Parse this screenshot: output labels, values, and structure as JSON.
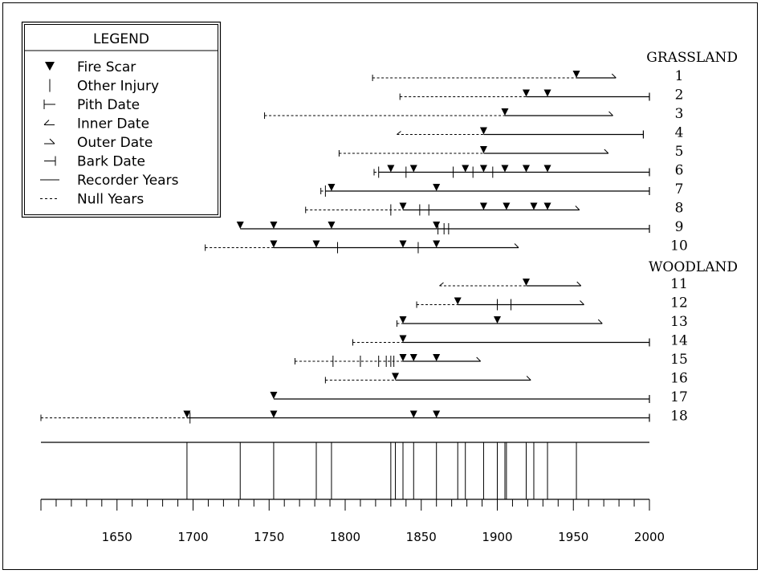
{
  "chart_data": {
    "type": "fire-history",
    "xlim": [
      1600,
      2000
    ],
    "major_ticks": [
      1650,
      1700,
      1750,
      1800,
      1850,
      1900,
      1950,
      2000
    ],
    "legend": {
      "title": "LEGEND",
      "items": [
        {
          "key": "fire_scar",
          "label": "Fire Scar"
        },
        {
          "key": "other_injury",
          "label": "Other Injury"
        },
        {
          "key": "pith_date",
          "label": "Pith Date"
        },
        {
          "key": "inner_date",
          "label": "Inner Date"
        },
        {
          "key": "outer_date",
          "label": "Outer Date"
        },
        {
          "key": "bark_date",
          "label": "Bark Date"
        },
        {
          "key": "recorder",
          "label": "Recorder Years"
        },
        {
          "key": "null",
          "label": "Null Years"
        }
      ]
    },
    "groups": [
      {
        "name": "GRASSLAND",
        "after_row": 0
      },
      {
        "name": "WOODLAND",
        "after_row": 10
      }
    ],
    "trees": [
      {
        "id": "1",
        "start": 1818,
        "end": 1978,
        "start_type": "pith",
        "end_type": "outer",
        "recorder_from": 1952,
        "scars": [
          1952
        ],
        "injuries": []
      },
      {
        "id": "2",
        "start": 1836,
        "end": 2000,
        "start_type": "pith",
        "end_type": "bark",
        "recorder_from": 1919,
        "scars": [
          1919,
          1933
        ],
        "injuries": []
      },
      {
        "id": "3",
        "start": 1747,
        "end": 1976,
        "start_type": "pith",
        "end_type": "outer",
        "recorder_from": 1905,
        "scars": [
          1905
        ],
        "injuries": []
      },
      {
        "id": "4",
        "start": 1834,
        "end": 1996,
        "start_type": "inner",
        "end_type": "bark",
        "recorder_from": 1891,
        "scars": [
          1891
        ],
        "injuries": []
      },
      {
        "id": "5",
        "start": 1796,
        "end": 1973,
        "start_type": "pith",
        "end_type": "outer",
        "recorder_from": 1891,
        "scars": [
          1891
        ],
        "injuries": []
      },
      {
        "id": "6",
        "start": 1819,
        "end": 2000,
        "start_type": "pith",
        "end_type": "bark",
        "recorder_from": 1822,
        "scars": [
          1830,
          1845,
          1879,
          1891,
          1905,
          1919,
          1933
        ],
        "injuries": [
          1822,
          1840,
          1871,
          1884,
          1897
        ]
      },
      {
        "id": "7",
        "start": 1784,
        "end": 2000,
        "start_type": "pith",
        "end_type": "bark",
        "recorder_from": 1787,
        "scars": [
          1791,
          1860
        ],
        "injuries": [
          1787
        ]
      },
      {
        "id": "8",
        "start": 1774,
        "end": 1954,
        "start_type": "pith",
        "end_type": "outer",
        "recorder_from": 1838,
        "scars": [
          1838,
          1891,
          1906,
          1924,
          1933
        ],
        "injuries": [
          1830,
          1849,
          1855
        ]
      },
      {
        "id": "9",
        "start": 1731,
        "end": 2000,
        "start_type": "none",
        "end_type": "bark",
        "recorder_from": 1731,
        "scars": [
          1731,
          1753,
          1791,
          1860
        ],
        "injuries": [
          1861,
          1865,
          1868
        ]
      },
      {
        "id": "10",
        "start": 1708,
        "end": 1914,
        "start_type": "pith",
        "end_type": "outer",
        "recorder_from": 1753,
        "scars": [
          1753,
          1781,
          1838,
          1860
        ],
        "injuries": [
          1795,
          1848
        ]
      },
      {
        "id": "11",
        "start": 1862,
        "end": 1955,
        "start_type": "inner",
        "end_type": "outer",
        "recorder_from": 1919,
        "scars": [
          1919
        ],
        "injuries": []
      },
      {
        "id": "12",
        "start": 1847,
        "end": 1957,
        "start_type": "pith",
        "end_type": "outer",
        "recorder_from": 1874,
        "scars": [
          1874
        ],
        "injuries": [
          1900,
          1909
        ]
      },
      {
        "id": "13",
        "start": 1834,
        "end": 1969,
        "start_type": "pith",
        "end_type": "outer",
        "recorder_from": 1838,
        "scars": [
          1838,
          1900
        ],
        "injuries": []
      },
      {
        "id": "14",
        "start": 1805,
        "end": 2000,
        "start_type": "pith",
        "end_type": "bark",
        "recorder_from": 1838,
        "scars": [
          1838
        ],
        "injuries": []
      },
      {
        "id": "15",
        "start": 1767,
        "end": 1889,
        "start_type": "pith",
        "end_type": "outer",
        "recorder_from": 1838,
        "scars": [
          1838,
          1845,
          1860
        ],
        "injuries": [
          1792,
          1810,
          1822,
          1827,
          1830,
          1832
        ]
      },
      {
        "id": "16",
        "start": 1787,
        "end": 1922,
        "start_type": "pith",
        "end_type": "outer",
        "recorder_from": 1833,
        "scars": [
          1833
        ],
        "injuries": []
      },
      {
        "id": "17",
        "start": 1753,
        "end": 2000,
        "start_type": "none",
        "end_type": "bark",
        "recorder_from": 1753,
        "scars": [
          1753
        ],
        "injuries": []
      },
      {
        "id": "18",
        "start": 1600,
        "end": 2000,
        "start_type": "pith",
        "end_type": "bark",
        "recorder_from": 1696,
        "scars": [
          1696,
          1753,
          1845,
          1860
        ],
        "injuries": [
          1698
        ]
      }
    ],
    "composite_years": [
      1696,
      1731,
      1753,
      1781,
      1791,
      1830,
      1833,
      1838,
      1845,
      1860,
      1874,
      1879,
      1891,
      1900,
      1905,
      1906,
      1919,
      1924,
      1933,
      1952
    ]
  }
}
